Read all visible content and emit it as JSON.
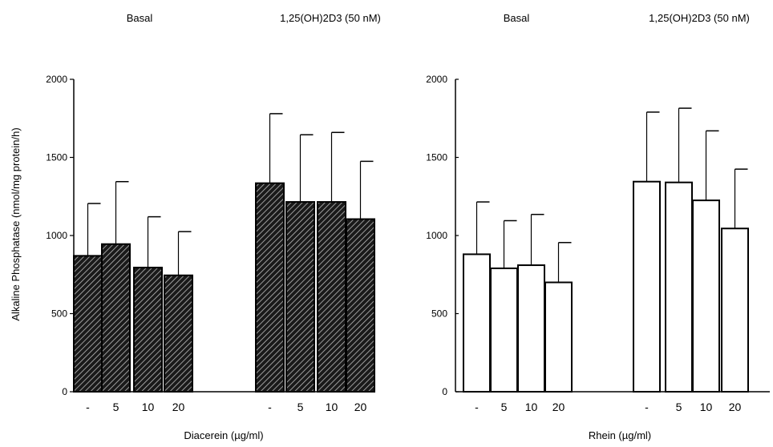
{
  "chart_data": [
    {
      "type": "bar",
      "group_labels": [
        "Basal",
        "1,25(OH)2D3 (50 nM)"
      ],
      "categories": [
        "-",
        "5",
        "10",
        "20",
        "-",
        "5",
        "10",
        "20"
      ],
      "values": [
        870,
        945,
        795,
        745,
        1335,
        1215,
        1215,
        1105
      ],
      "errors": [
        335,
        400,
        325,
        280,
        445,
        430,
        445,
        370
      ],
      "xlabel": "Diacerein (µg/ml)",
      "ylabel": "Alkaline Phosphatase (nmol/mg protein/h)",
      "yticks": [
        0,
        500,
        1000,
        1500,
        2000
      ],
      "ylim": [
        0,
        2000
      ],
      "bar_style": "hatched-dark",
      "grid": false
    },
    {
      "type": "bar",
      "group_labels": [
        "Basal",
        "1,25(OH)2D3 (50 nM)"
      ],
      "categories": [
        "-",
        "5",
        "10",
        "20",
        "-",
        "5",
        "10",
        "20"
      ],
      "values": [
        880,
        790,
        810,
        700,
        1345,
        1340,
        1225,
        1045
      ],
      "errors": [
        335,
        305,
        325,
        255,
        445,
        475,
        445,
        380
      ],
      "xlabel": "Rhein (µg/ml)",
      "ylabel": "",
      "yticks": [
        0,
        500,
        1000,
        1500,
        2000
      ],
      "ylim": [
        0,
        2000
      ],
      "bar_style": "open",
      "grid": false
    }
  ],
  "colors": {
    "bar_dark": "#1a1a1a",
    "bar_open": "#ffffff",
    "hatch": "#bdbdbd",
    "ink": "#000000"
  }
}
